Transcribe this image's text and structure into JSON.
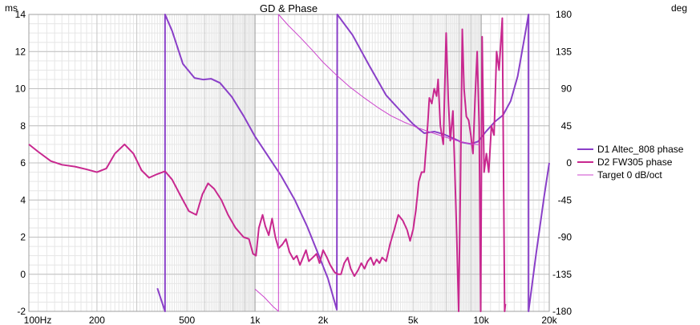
{
  "chart_data": {
    "type": "line",
    "title": "GD & Phase",
    "left_axis": {
      "unit": "ms",
      "range": [
        -2,
        14
      ],
      "ticks": [
        "14",
        "12",
        "10",
        "8",
        "6",
        "4",
        "2",
        "0",
        "-2"
      ]
    },
    "right_axis": {
      "unit": "deg",
      "range": [
        -180,
        180
      ],
      "ticks": [
        "180",
        "135",
        "90",
        "45",
        "0",
        "-45",
        "-90",
        "-135",
        "-180"
      ]
    },
    "x_axis": {
      "scale": "log",
      "range": [
        100,
        20000
      ],
      "ticks": [
        {
          "value": 100,
          "label": "100Hz"
        },
        {
          "value": 200,
          "label": "200"
        },
        {
          "value": 500,
          "label": "500"
        },
        {
          "value": 1000,
          "label": "1k"
        },
        {
          "value": 2000,
          "label": "2k"
        },
        {
          "value": 5000,
          "label": "5k"
        },
        {
          "value": 10000,
          "label": "10k"
        },
        {
          "value": 20000,
          "label": "20k"
        }
      ]
    },
    "grid": true,
    "legend_position": "right",
    "series": [
      {
        "name": "D1 Altec_808 phase",
        "color": "#8a3fc8",
        "axis": "right",
        "points": [
          [
            370,
            -152
          ],
          [
            400,
            -180
          ],
          [
            400,
            180
          ],
          [
            430,
            160
          ],
          [
            480,
            120
          ],
          [
            540,
            103
          ],
          [
            590,
            101
          ],
          [
            640,
            102
          ],
          [
            700,
            97
          ],
          [
            790,
            80
          ],
          [
            890,
            57
          ],
          [
            1000,
            32
          ],
          [
            1150,
            7
          ],
          [
            1300,
            -15
          ],
          [
            1500,
            -45
          ],
          [
            1700,
            -77
          ],
          [
            1900,
            -110
          ],
          [
            2100,
            -140
          ],
          [
            2300,
            -178
          ],
          [
            2310,
            180
          ],
          [
            2700,
            155
          ],
          [
            3200,
            118
          ],
          [
            3800,
            82
          ],
          [
            4400,
            63
          ],
          [
            5000,
            47
          ],
          [
            5600,
            36
          ],
          [
            6200,
            38
          ],
          [
            6800,
            35
          ],
          [
            7500,
            30
          ],
          [
            8200,
            25
          ],
          [
            9000,
            23
          ],
          [
            9700,
            26
          ],
          [
            10500,
            38
          ],
          [
            11500,
            50
          ],
          [
            12500,
            58
          ],
          [
            13500,
            75
          ],
          [
            14500,
            105
          ],
          [
            15500,
            150
          ],
          [
            16200,
            180
          ],
          [
            16200,
            -180
          ],
          [
            17500,
            -110
          ],
          [
            19000,
            -40
          ],
          [
            20000,
            0
          ]
        ]
      },
      {
        "name": "D2 FW305 phase",
        "color": "#c8288f",
        "axis": "left",
        "points": [
          [
            100,
            7.0
          ],
          [
            110,
            6.6
          ],
          [
            125,
            6.1
          ],
          [
            140,
            5.9
          ],
          [
            160,
            5.8
          ],
          [
            180,
            5.65
          ],
          [
            200,
            5.5
          ],
          [
            220,
            5.7
          ],
          [
            240,
            6.5
          ],
          [
            265,
            7.0
          ],
          [
            290,
            6.5
          ],
          [
            315,
            5.6
          ],
          [
            340,
            5.2
          ],
          [
            370,
            5.4
          ],
          [
            400,
            5.55
          ],
          [
            430,
            5.1
          ],
          [
            470,
            4.2
          ],
          [
            510,
            3.4
          ],
          [
            550,
            3.2
          ],
          [
            585,
            4.3
          ],
          [
            620,
            4.9
          ],
          [
            660,
            4.6
          ],
          [
            710,
            4.0
          ],
          [
            760,
            3.2
          ],
          [
            820,
            2.5
          ],
          [
            890,
            2.0
          ],
          [
            940,
            1.9
          ],
          [
            980,
            1.1
          ],
          [
            1010,
            1.0
          ],
          [
            1040,
            2.5
          ],
          [
            1080,
            3.2
          ],
          [
            1110,
            2.6
          ],
          [
            1150,
            2.1
          ],
          [
            1190,
            3.0
          ],
          [
            1230,
            2.0
          ],
          [
            1270,
            1.4
          ],
          [
            1320,
            1.6
          ],
          [
            1370,
            1.9
          ],
          [
            1420,
            1.2
          ],
          [
            1480,
            0.8
          ],
          [
            1530,
            1.0
          ],
          [
            1580,
            0.5
          ],
          [
            1630,
            0.9
          ],
          [
            1680,
            1.3
          ],
          [
            1730,
            0.7
          ],
          [
            1800,
            0.9
          ],
          [
            1870,
            1.1
          ],
          [
            1930,
            0.6
          ],
          [
            2000,
            1.3
          ],
          [
            2080,
            0.9
          ],
          [
            2150,
            0.5
          ],
          [
            2250,
            0.1
          ],
          [
            2330,
            0.0
          ],
          [
            2400,
            0.0
          ],
          [
            2480,
            0.6
          ],
          [
            2570,
            0.9
          ],
          [
            2650,
            0.3
          ],
          [
            2750,
            -0.1
          ],
          [
            2850,
            0.2
          ],
          [
            2950,
            0.6
          ],
          [
            3050,
            0.3
          ],
          [
            3150,
            0.7
          ],
          [
            3250,
            0.9
          ],
          [
            3350,
            0.5
          ],
          [
            3450,
            0.8
          ],
          [
            3550,
            0.6
          ],
          [
            3650,
            0.9
          ],
          [
            3800,
            0.7
          ],
          [
            3950,
            1.6
          ],
          [
            4150,
            2.5
          ],
          [
            4300,
            3.2
          ],
          [
            4500,
            2.9
          ],
          [
            4700,
            2.4
          ],
          [
            4850,
            1.8
          ],
          [
            5000,
            2.4
          ],
          [
            5150,
            3.5
          ],
          [
            5300,
            5.0
          ],
          [
            5450,
            5.5
          ],
          [
            5600,
            5.5
          ],
          [
            5750,
            7.3
          ],
          [
            5900,
            9.5
          ],
          [
            6050,
            9.2
          ],
          [
            6200,
            10.0
          ],
          [
            6350,
            9.6
          ],
          [
            6450,
            10.5
          ],
          [
            6600,
            8.0
          ],
          [
            6800,
            7.0
          ],
          [
            7000,
            13.0
          ],
          [
            7150,
            9.5
          ],
          [
            7300,
            7.2
          ],
          [
            7500,
            8.8
          ],
          [
            7650,
            5.5
          ],
          [
            7800,
            2.0
          ],
          [
            7950,
            -2.0
          ],
          [
            8100,
            5.0
          ],
          [
            8250,
            13.2
          ],
          [
            8400,
            10.0
          ],
          [
            8600,
            8.5
          ],
          [
            8800,
            8.3
          ],
          [
            9000,
            7.5
          ],
          [
            9200,
            6.5
          ],
          [
            9400,
            9.5
          ],
          [
            9600,
            12.0
          ],
          [
            9800,
            8.0
          ],
          [
            9950,
            -2.0
          ],
          [
            10100,
            12.8
          ],
          [
            10300,
            5.5
          ],
          [
            10550,
            6.5
          ],
          [
            10800,
            5.5
          ],
          [
            11100,
            8.0
          ],
          [
            11400,
            7.5
          ],
          [
            11700,
            12.0
          ],
          [
            12000,
            11.0
          ],
          [
            12400,
            13.8
          ],
          [
            12700,
            -2.0
          ],
          [
            12800,
            -1.6
          ]
        ]
      },
      {
        "name": "Target 0 dB/oct",
        "color": "#cc44cc",
        "axis": "right",
        "points": [
          [
            1000,
            -153
          ],
          [
            1100,
            -163
          ],
          [
            1200,
            -174
          ],
          [
            1270,
            -180
          ],
          [
            1270,
            180
          ],
          [
            1400,
            167
          ],
          [
            1600,
            151
          ],
          [
            1800,
            136
          ],
          [
            2000,
            122
          ],
          [
            2300,
            106
          ],
          [
            2600,
            93
          ],
          [
            3000,
            80
          ],
          [
            3500,
            67
          ],
          [
            4000,
            57
          ],
          [
            4600,
            49
          ],
          [
            5200,
            43
          ],
          [
            6000,
            37
          ],
          [
            6800,
            32
          ],
          [
            7800,
            27
          ],
          [
            9000,
            23
          ],
          [
            9800,
            22
          ]
        ]
      }
    ]
  }
}
